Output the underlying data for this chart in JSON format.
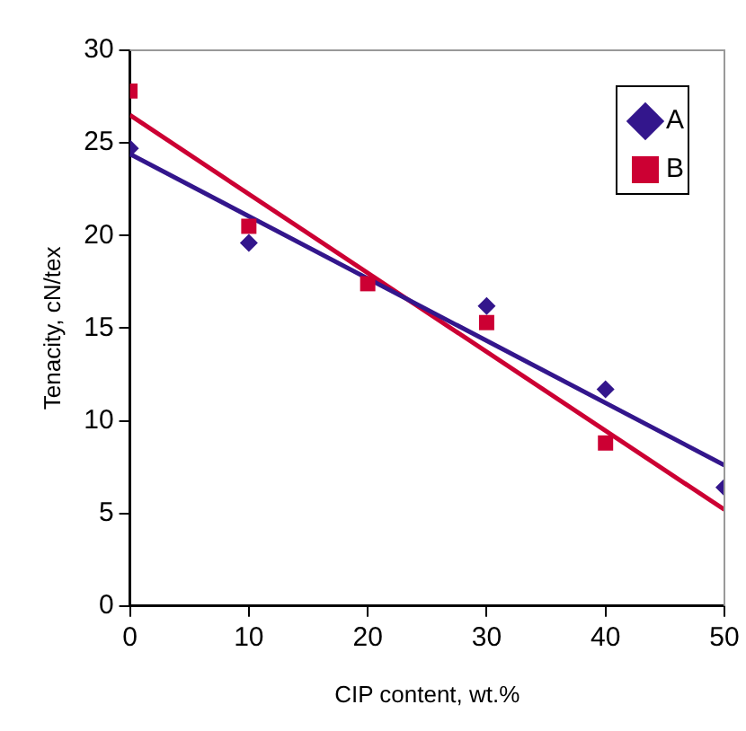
{
  "chart_data": {
    "type": "scatter",
    "xlabel": "CIP content, wt.%",
    "ylabel": "Tenacity, cN/tex",
    "x": [
      0,
      10,
      20,
      30,
      40,
      50
    ],
    "series": [
      {
        "name": "A",
        "color": "#33168c",
        "marker": "diamond",
        "values": [
          24.7,
          19.6,
          null,
          16.2,
          11.7,
          6.4
        ]
      },
      {
        "name": "B",
        "color": "#cc0033",
        "marker": "square",
        "x": [
          0,
          10,
          20,
          30,
          40
        ],
        "values": [
          27.8,
          20.5,
          17.4,
          15.3,
          8.8
        ]
      },
      {
        "type": "line",
        "color": "#33168c",
        "marker": "none",
        "x": [
          0,
          50
        ],
        "values": [
          24.4,
          7.6
        ]
      },
      {
        "type": "line",
        "color": "#cc0033",
        "marker": "none",
        "x": [
          0,
          50
        ],
        "values": [
          26.5,
          5.2
        ]
      }
    ],
    "xlim": [
      0,
      50
    ],
    "xticks": [
      0,
      10,
      20,
      30,
      40,
      50
    ],
    "ylim": [
      0,
      30
    ],
    "yticks": [
      0,
      5,
      10,
      15,
      20,
      25,
      30
    ],
    "grid": false,
    "legend": "top right"
  }
}
